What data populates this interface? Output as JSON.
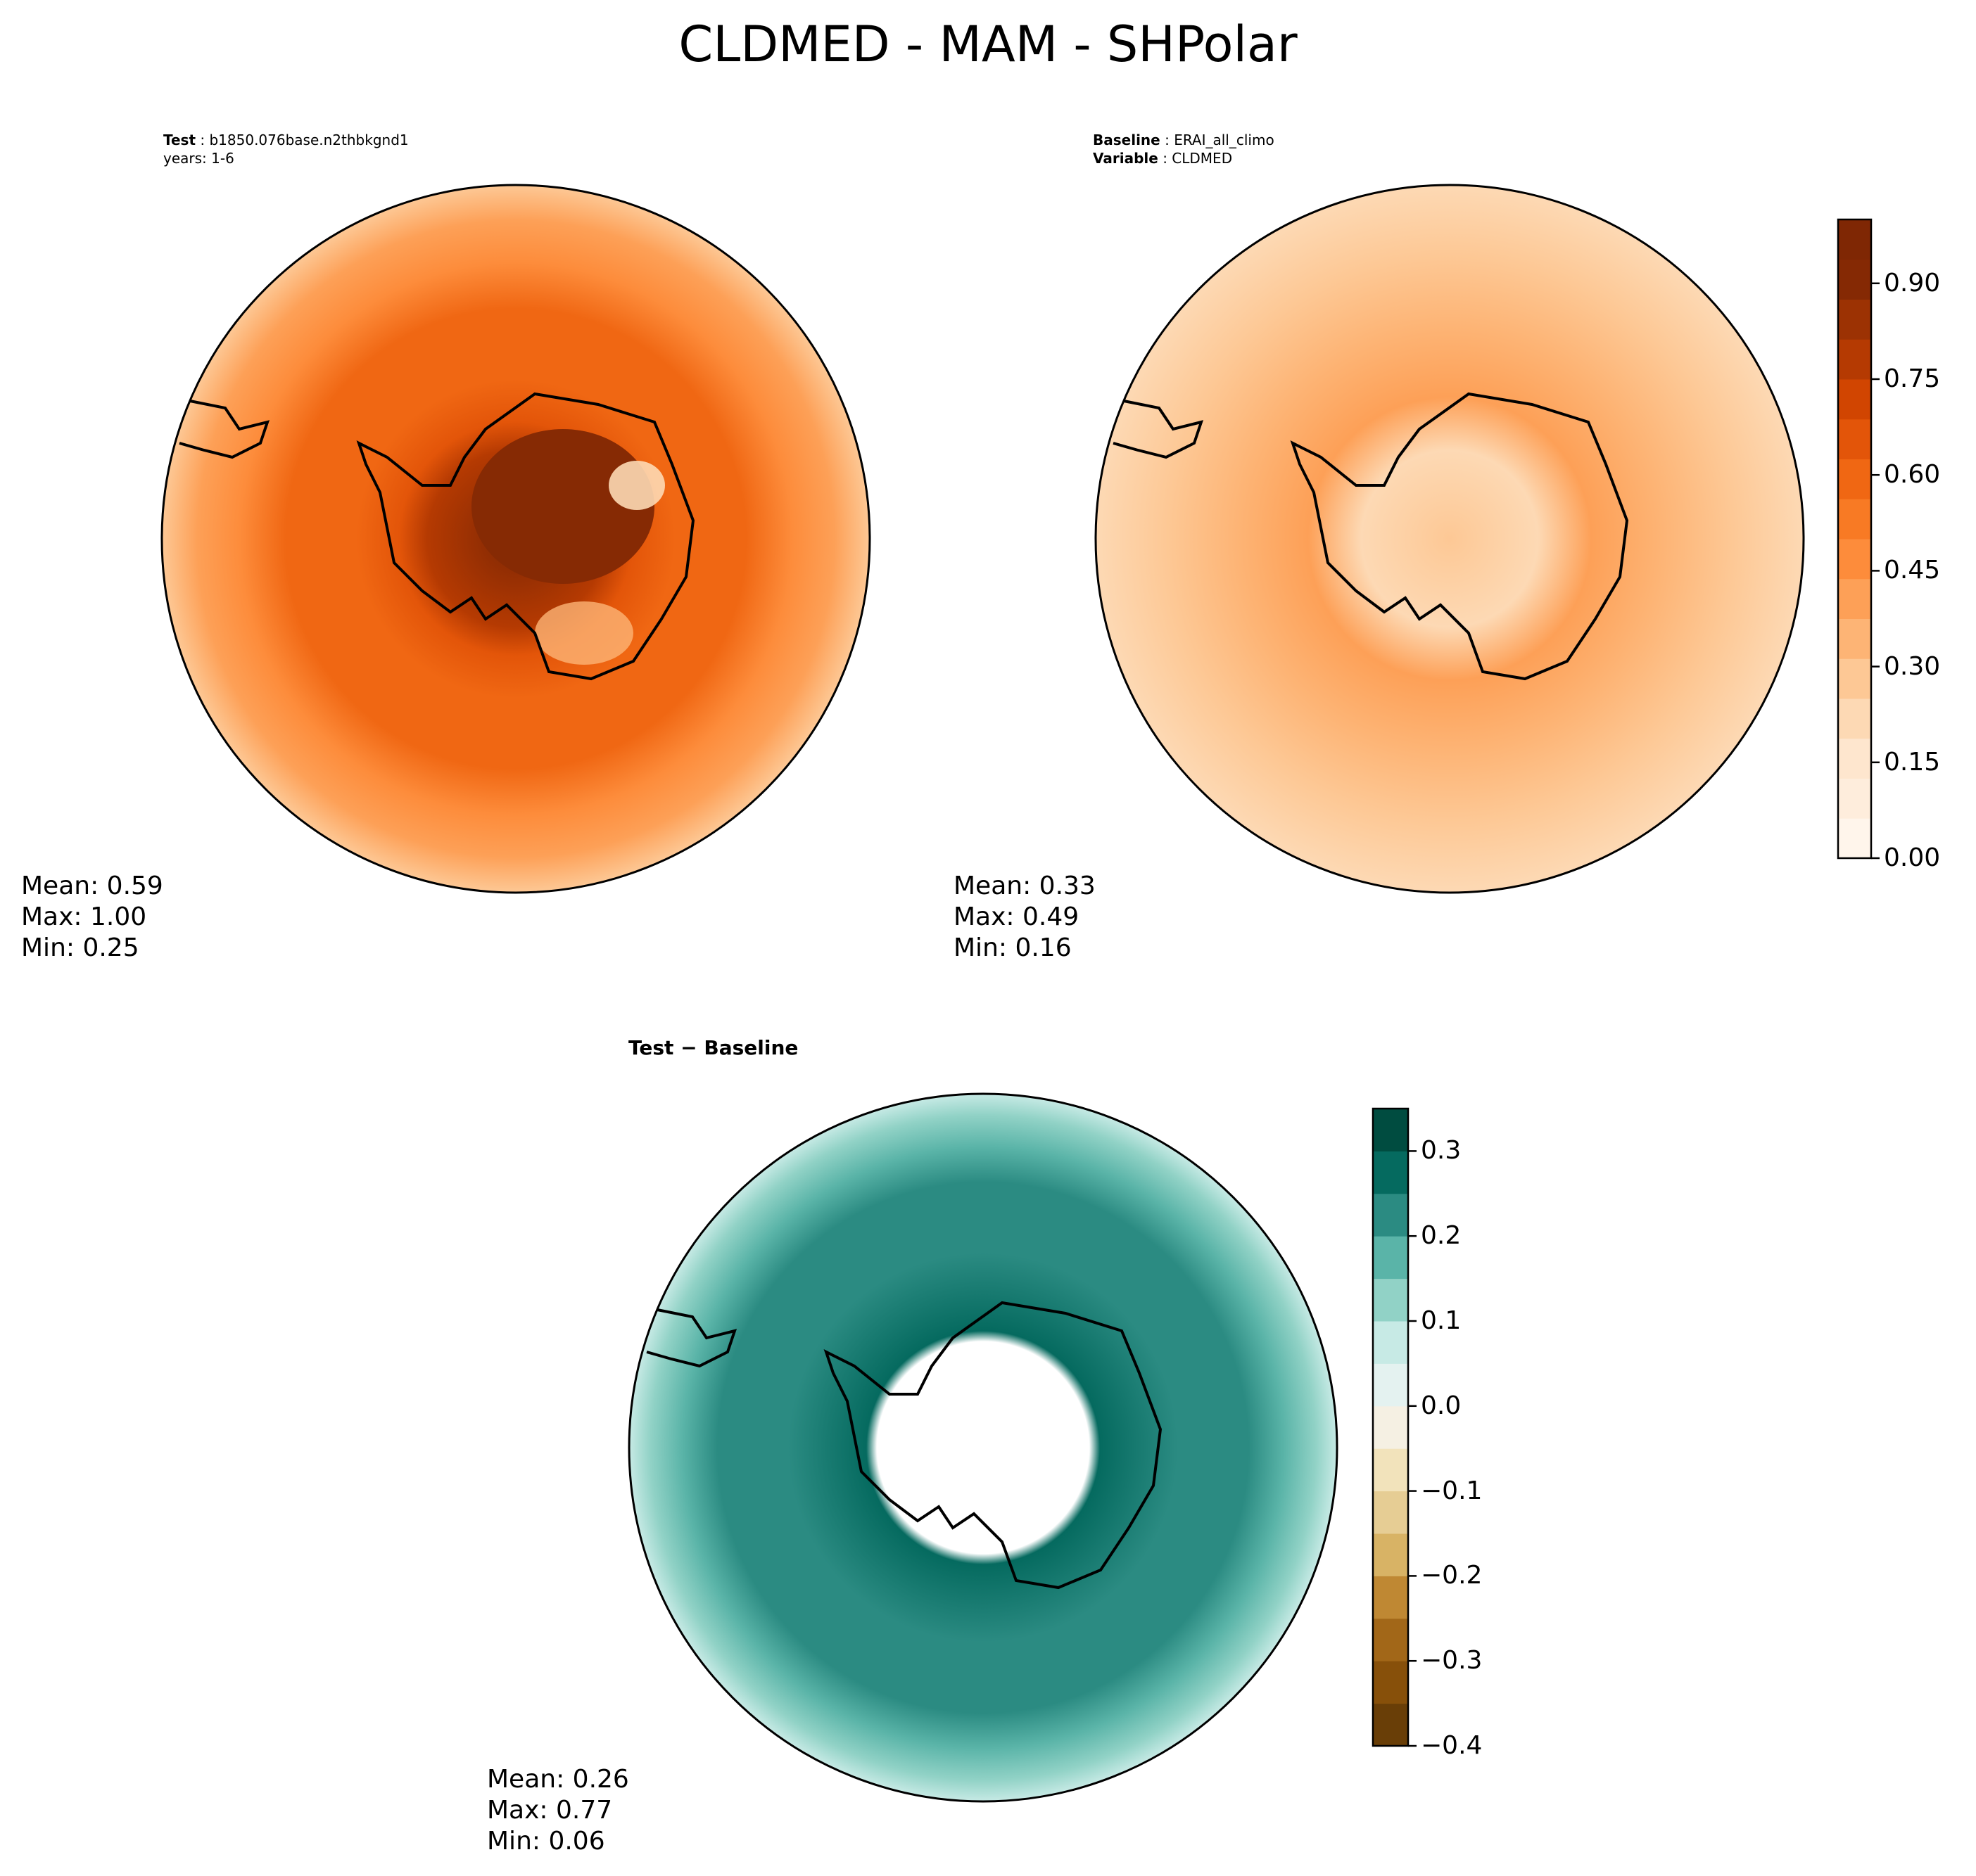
{
  "title": "CLDMED - MAM - SHPolar",
  "test_panel": {
    "label_key": "Test",
    "case": "b1850.076base.n2thbkgnd1",
    "years": "years: 1-6",
    "stats": {
      "mean": "Mean:  0.59",
      "max": "Max:  1.00",
      "min": "Min:  0.25"
    }
  },
  "baseline_panel": {
    "label_key": "Baseline",
    "case": "ERAI_all_climo",
    "variable_key": "Variable",
    "variable": "CLDMED",
    "stats": {
      "mean": "Mean:  0.33",
      "max": "Max:  0.49",
      "min": "Min:  0.16"
    }
  },
  "diff_panel": {
    "header": "Test − Baseline",
    "stats": {
      "mean": "Mean:  0.26",
      "max": "Max:  0.77",
      "min": "Min:  0.06"
    }
  },
  "colorbar_main": {
    "ticks": [
      "0.00",
      "0.15",
      "0.30",
      "0.45",
      "0.60",
      "0.75",
      "0.90"
    ],
    "tick_values": [
      0,
      0.15,
      0.3,
      0.45,
      0.6,
      0.75,
      0.9
    ],
    "range": [
      0,
      1
    ],
    "colors": [
      "#fff5eb",
      "#feeddc",
      "#fee6ce",
      "#fdd9b4",
      "#fdc895",
      "#fdb475",
      "#fda057",
      "#fd8c3b",
      "#f87a24",
      "#f06713",
      "#e35509",
      "#d14501",
      "#b53a02",
      "#9c3203",
      "#852904",
      "#7f2704"
    ]
  },
  "colorbar_diff": {
    "ticks": [
      "−0.4",
      "−0.3",
      "−0.2",
      "−0.1",
      "0.0",
      "0.1",
      "0.2",
      "0.3"
    ],
    "tick_values": [
      -0.4,
      -0.3,
      -0.2,
      -0.1,
      0.0,
      0.1,
      0.2,
      0.3
    ],
    "range": [
      -0.4,
      0.35
    ],
    "colors": [
      "#693e07",
      "#87500a",
      "#a26718",
      "#bf8833",
      "#d8b365",
      "#e6cd94",
      "#f2e3bb",
      "#f5f0e3",
      "#e4f2f0",
      "#c7eae5",
      "#91d2c6",
      "#5ab4a8",
      "#2b8b82",
      "#056a5f",
      "#004c40"
    ]
  }
}
